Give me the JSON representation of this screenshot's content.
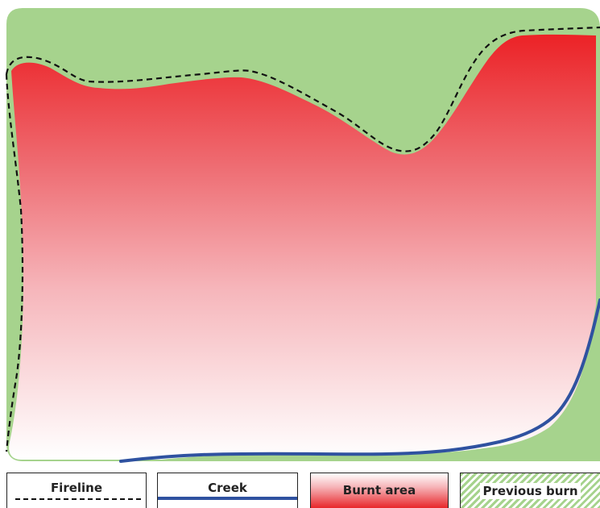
{
  "legend": {
    "fireline_label": "Fireline",
    "creek_label": "Creek",
    "burnt_label": "Burnt area",
    "previous_burn_label": "Previous burn"
  },
  "colors": {
    "previous_burn_green": "#a6d38d",
    "burnt_red": "#e8262a",
    "burnt_fade": "#ffffff",
    "creek_blue": "#2f52a0",
    "fireline_black": "#111111"
  },
  "icons": {
    "fireline_swatch": "dashed-line-icon",
    "creek_swatch": "solid-blue-line-icon",
    "burnt_swatch": "red-gradient-icon",
    "previous_burn_swatch": "green-hatch-icon"
  }
}
